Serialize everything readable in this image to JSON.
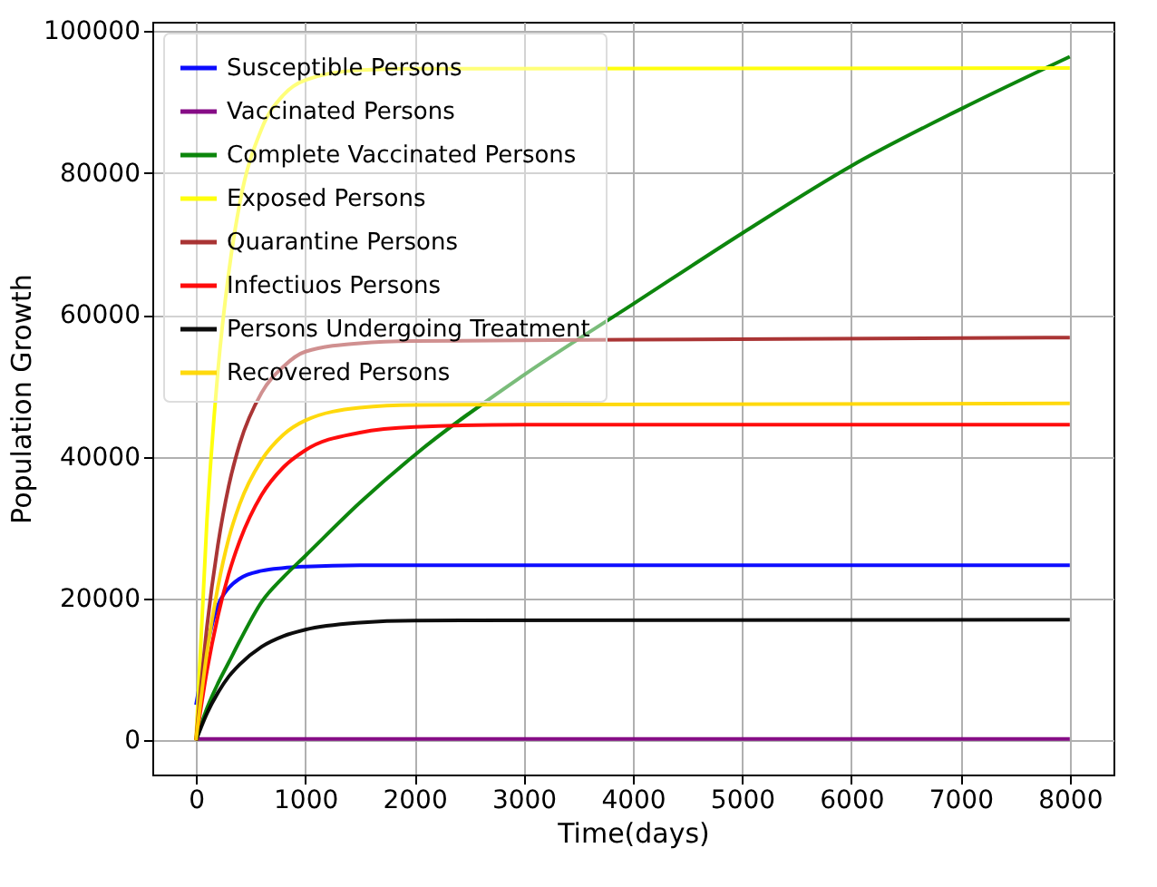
{
  "chart_data": {
    "type": "line",
    "xlabel": "Time(days)",
    "ylabel": "Population Growth",
    "xlim": [
      -400,
      8400
    ],
    "ylim": [
      -4825,
      101325
    ],
    "xticks": [
      0,
      1000,
      2000,
      3000,
      4000,
      5000,
      6000,
      7000,
      8000
    ],
    "yticks": [
      0,
      20000,
      40000,
      60000,
      80000,
      100000
    ],
    "grid": true,
    "legend": "top left",
    "series": [
      {
        "name": "Susceptible Persons",
        "color": "#0000ff",
        "x": [
          0,
          200,
          300,
          400,
          600,
          800,
          1000,
          1500,
          8000
        ],
        "values": [
          5000,
          19000,
          21500,
          22800,
          23900,
          24300,
          24500,
          24700,
          24700
        ]
      },
      {
        "name": "Vaccinated Persons",
        "color": "#800080",
        "x": [
          0,
          8000
        ],
        "values": [
          200,
          200
        ]
      },
      {
        "name": "Complete Vaccinated Persons",
        "color": "#008000",
        "x": [
          0,
          100,
          200,
          300,
          400,
          600,
          800,
          1000,
          1500,
          2000,
          3000,
          4000,
          5000,
          6000,
          7000,
          8000
        ],
        "values": [
          0,
          4500,
          8000,
          11000,
          14000,
          19500,
          23000,
          26000,
          33500,
          40200,
          51500,
          61500,
          71500,
          81000,
          89000,
          96400
        ]
      },
      {
        "name": "Exposed  Persons",
        "color": "#ffff00",
        "x": [
          0,
          100,
          200,
          300,
          400,
          600,
          800,
          1000,
          1500,
          2000,
          8000
        ],
        "values": [
          0,
          31000,
          52000,
          66000,
          75700,
          86200,
          91000,
          93100,
          94500,
          94700,
          94800
        ]
      },
      {
        "name": "Quarantine Persons",
        "color": "#a52a2a",
        "x": [
          0,
          100,
          200,
          300,
          400,
          600,
          800,
          1000,
          1500,
          2000,
          4000,
          8000
        ],
        "values": [
          0,
          16000,
          27500,
          35900,
          41800,
          49000,
          52700,
          54800,
          56000,
          56300,
          56500,
          56800
        ]
      },
      {
        "name": "Infectiuos  Persons",
        "color": "#ff0000",
        "x": [
          0,
          100,
          200,
          300,
          400,
          600,
          800,
          1000,
          1500,
          2000,
          3000,
          8000
        ],
        "values": [
          0,
          9800,
          17500,
          23500,
          28100,
          34600,
          38500,
          40900,
          43400,
          44200,
          44500,
          44500
        ]
      },
      {
        "name": "Persons Undergoing Treatment",
        "color": "#000000",
        "x": [
          0,
          100,
          200,
          300,
          400,
          600,
          800,
          1000,
          1500,
          2000,
          8000
        ],
        "values": [
          0,
          3800,
          6700,
          9000,
          10700,
          13200,
          14700,
          15600,
          16600,
          16900,
          17000
        ]
      },
      {
        "name": "Recovered Persons",
        "color": "#ffd700",
        "x": [
          0,
          100,
          200,
          300,
          400,
          600,
          800,
          1000,
          1500,
          2000,
          8000
        ],
        "values": [
          0,
          12400,
          21600,
          28500,
          33300,
          39500,
          43100,
          45100,
          46900,
          47300,
          47500
        ]
      }
    ]
  }
}
